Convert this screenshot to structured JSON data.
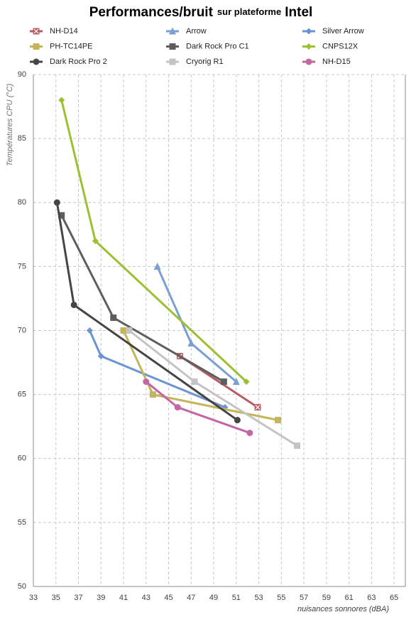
{
  "chart_data": {
    "type": "line",
    "title": "Performances/bruit",
    "subtitle": "sur plateforme",
    "title_suffix": "Intel",
    "x_label": "nuisances sonnores (dBA)",
    "y_label": "Températures  CPU (°C)",
    "xlim": [
      33,
      66
    ],
    "ylim": [
      50,
      90
    ],
    "xticks": [
      33,
      35,
      37,
      39,
      41,
      43,
      45,
      47,
      49,
      51,
      53,
      55,
      57,
      59,
      61,
      63,
      65
    ],
    "yticks": [
      50,
      55,
      60,
      65,
      70,
      75,
      80,
      85,
      90
    ],
    "grid": true,
    "series": [
      {
        "name": "NH-D14",
        "color": "#b85c63",
        "marker": "square-x",
        "x": [
          46.0,
          52.9
        ],
        "values": [
          68,
          64
        ]
      },
      {
        "name": "Arrow",
        "color": "#7a9fd4",
        "marker": "triangle",
        "x": [
          44.0,
          47.0,
          51.0
        ],
        "values": [
          75,
          69,
          66
        ]
      },
      {
        "name": "Silver Arrow",
        "color": "#6b93d6",
        "marker": "diamond",
        "x": [
          38.0,
          39.0,
          50.0
        ],
        "values": [
          70,
          68,
          64
        ]
      },
      {
        "name": "PH-TC14PE",
        "color": "#c4b55a",
        "marker": "square",
        "x": [
          41.0,
          43.6,
          54.7
        ],
        "values": [
          70,
          65,
          63
        ]
      },
      {
        "name": "Dark Rock Pro C1",
        "color": "#5e5e5e",
        "marker": "square",
        "x": [
          35.5,
          40.1,
          49.9
        ],
        "values": [
          79,
          71,
          66
        ]
      },
      {
        "name": "CNPS12X",
        "color": "#9bc133",
        "marker": "diamond",
        "x": [
          35.5,
          38.5,
          51.9
        ],
        "values": [
          88,
          77,
          66
        ]
      },
      {
        "name": "Dark Rock Pro 2",
        "color": "#454545",
        "marker": "circle",
        "x": [
          35.1,
          36.6,
          51.1
        ],
        "values": [
          80,
          72,
          63
        ]
      },
      {
        "name": "Cryorig R1",
        "color": "#c4c4c4",
        "marker": "square",
        "x": [
          41.5,
          47.3,
          56.4
        ],
        "values": [
          70,
          66,
          61
        ]
      },
      {
        "name": "NH-D15",
        "color": "#c266a4",
        "marker": "circle",
        "x": [
          43.0,
          45.8,
          52.2
        ],
        "values": [
          66,
          64,
          62
        ]
      }
    ]
  }
}
